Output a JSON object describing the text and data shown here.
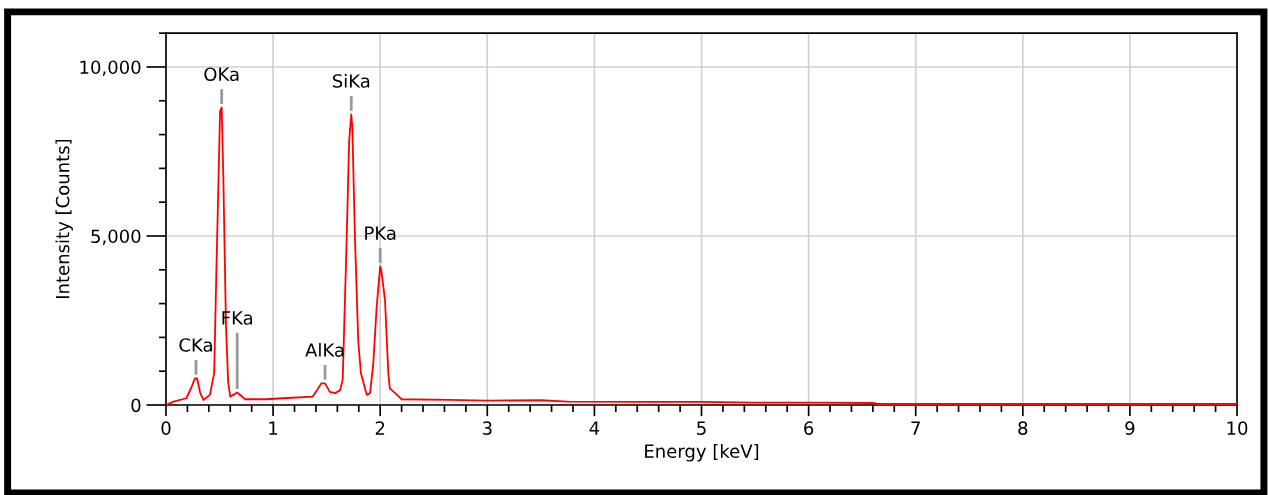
{
  "chart_data": {
    "type": "line",
    "xlabel": "Energy [keV]",
    "ylabel": "Intensity [Counts]",
    "xlim": [
      0,
      10
    ],
    "ylim": [
      0,
      11000
    ],
    "xticks": [
      0,
      1,
      2,
      3,
      4,
      5,
      6,
      7,
      8,
      9,
      10
    ],
    "yticks": [
      {
        "value": 0,
        "label": "0"
      },
      {
        "value": 5000,
        "label": "5,000"
      },
      {
        "value": 10000,
        "label": "10,000"
      }
    ],
    "grid": true,
    "marker": "none",
    "line_style": "solid",
    "series": [
      {
        "color": "#ff0000",
        "x": [
          0,
          0.07,
          0.19,
          0.24,
          0.27,
          0.29,
          0.32,
          0.35,
          0.41,
          0.45,
          0.47,
          0.495,
          0.505,
          0.52,
          0.535,
          0.56,
          0.58,
          0.6,
          0.645,
          0.665,
          0.74,
          0.94,
          1.09,
          1.37,
          1.41,
          1.45,
          1.485,
          1.53,
          1.58,
          1.625,
          1.65,
          1.687,
          1.71,
          1.73,
          1.74,
          1.765,
          1.795,
          1.82,
          1.875,
          1.905,
          1.935,
          1.967,
          2.0,
          2.01,
          2.045,
          2.076,
          2.09,
          2.14,
          2.2,
          2.65,
          3.0,
          3.5,
          3.75,
          4.5,
          5.0,
          5.5,
          6.0,
          6.6,
          6.65,
          8.0,
          10.0
        ],
        "values": [
          0,
          100,
          200,
          540,
          790,
          790,
          350,
          150,
          300,
          940,
          3900,
          7300,
          8700,
          8800,
          6800,
          2400,
          700,
          250,
          330,
          370,
          170,
          170,
          200,
          250,
          440,
          640,
          640,
          390,
          350,
          440,
          740,
          4900,
          7800,
          8600,
          8200,
          4900,
          1900,
          940,
          300,
          350,
          1200,
          2900,
          4100,
          4000,
          3100,
          940,
          490,
          350,
          170,
          150,
          130,
          140,
          100,
          90,
          90,
          70,
          70,
          60,
          30,
          30,
          30
        ]
      }
    ],
    "annotations": [
      {
        "text": "CKa",
        "x": 0.28,
        "y": 790
      },
      {
        "text": "OKa",
        "x": 0.52,
        "y": 8800
      },
      {
        "text": "FKa",
        "x": 0.665,
        "y": 370
      },
      {
        "text": "AlKa",
        "x": 1.485,
        "y": 640
      },
      {
        "text": "SiKa",
        "x": 1.73,
        "y": 8600
      },
      {
        "text": "PKa",
        "x": 2.0,
        "y": 4100
      }
    ]
  }
}
